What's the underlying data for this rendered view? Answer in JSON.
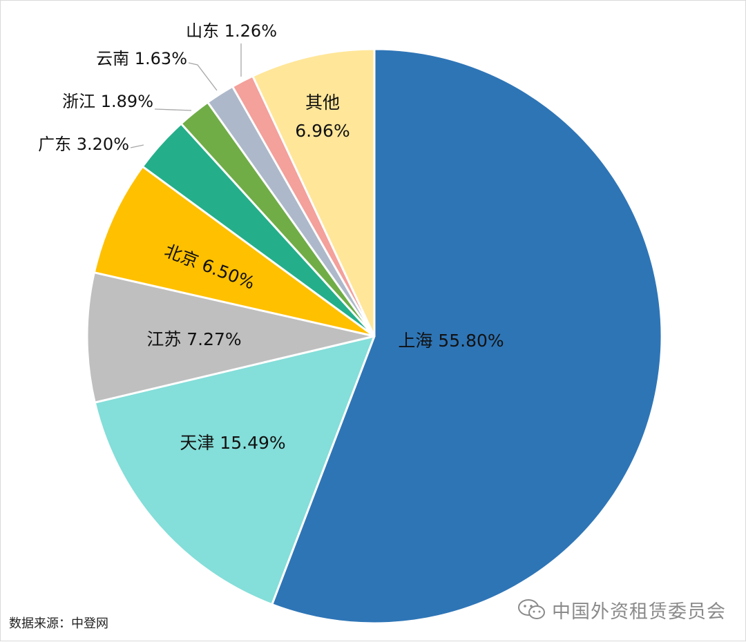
{
  "chart_data": {
    "type": "pie",
    "start_angle_deg": 0,
    "direction": "clockwise",
    "slices": [
      {
        "label": "上海",
        "pct_text": "55.80%",
        "value": 55.8,
        "color": "#2E75B6",
        "label_mode": "inside"
      },
      {
        "label": "天津",
        "pct_text": "15.49%",
        "value": 15.49,
        "color": "#84DED9",
        "label_mode": "inside"
      },
      {
        "label": "江苏",
        "pct_text": "7.27%",
        "value": 7.27,
        "color": "#BFBFBF",
        "label_mode": "inside"
      },
      {
        "label": "北京",
        "pct_text": "6.50%",
        "value": 6.5,
        "color": "#FFC000",
        "label_mode": "inside-rotated"
      },
      {
        "label": "广东",
        "pct_text": "3.20%",
        "value": 3.2,
        "color": "#24AF8A",
        "label_mode": "leader"
      },
      {
        "label": "浙江",
        "pct_text": "1.89%",
        "value": 1.89,
        "color": "#70AD47",
        "label_mode": "leader"
      },
      {
        "label": "云南",
        "pct_text": "1.63%",
        "value": 1.63,
        "color": "#ADB9CA",
        "label_mode": "leader"
      },
      {
        "label": "山东",
        "pct_text": "1.26%",
        "value": 1.26,
        "color": "#F4A09B",
        "label_mode": "leader"
      },
      {
        "label": "其他",
        "pct_text": "6.96%",
        "value": 6.96,
        "color": "#FFE699",
        "label_mode": "inside-two-line"
      }
    ]
  },
  "footer": {
    "source": "数据来源：中登网",
    "watermark": "中国外资租赁委员会"
  }
}
